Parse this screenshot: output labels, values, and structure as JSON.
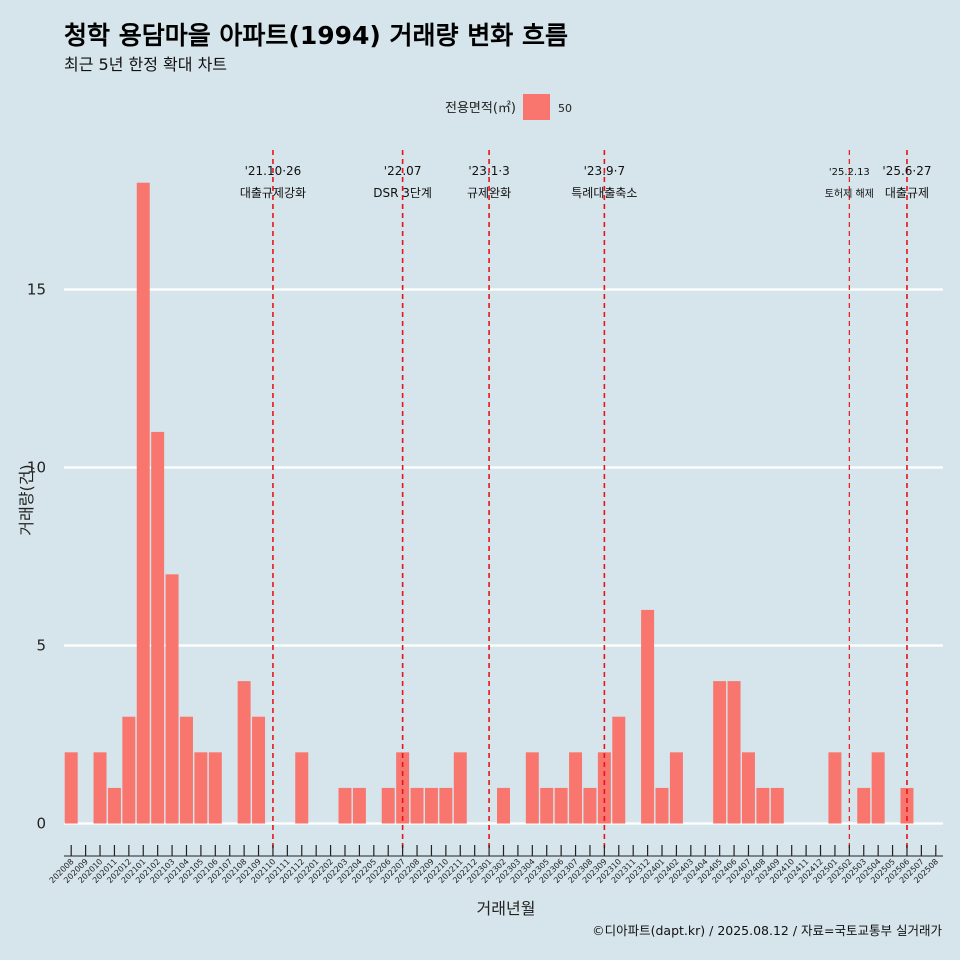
{
  "header": {
    "title": "청학 용담마을 아파트(1994) 거래량 변화 흐름",
    "subtitle": "최근 5년 한정 확대 차트"
  },
  "legend": {
    "title": "전용면적(㎡)",
    "items": [
      {
        "label": "50",
        "color": "#f8766d"
      }
    ]
  },
  "caption": "©디아파트(dapt.kr) / 2025.08.12 / 자료=국토교통부 실거래가",
  "chart_data": {
    "type": "bar",
    "title": "청학 용담마을 아파트(1994) 거래량 변화 흐름",
    "subtitle": "최근 5년 한정 확대 차트",
    "xlabel": "거래년월",
    "ylabel": "거래량(건)",
    "ylim": [
      -0.8,
      19.2
    ],
    "yticks": [
      0,
      5,
      10,
      15
    ],
    "grid": "horizontal major only",
    "legend_position": "top",
    "bar_color": "#f8766d",
    "categories": [
      "202008",
      "202009",
      "202010",
      "202011",
      "202012",
      "202101",
      "202102",
      "202103",
      "202104",
      "202105",
      "202106",
      "202107",
      "202108",
      "202109",
      "202110",
      "202111",
      "202112",
      "202201",
      "202202",
      "202203",
      "202204",
      "202205",
      "202206",
      "202207",
      "202208",
      "202209",
      "202210",
      "202211",
      "202212",
      "202301",
      "202302",
      "202303",
      "202304",
      "202305",
      "202306",
      "202307",
      "202308",
      "202309",
      "202310",
      "202311",
      "202312",
      "202401",
      "202402",
      "202403",
      "202404",
      "202405",
      "202406",
      "202407",
      "202408",
      "202409",
      "202410",
      "202411",
      "202412",
      "202501",
      "202502",
      "202503",
      "202504",
      "202505",
      "202506",
      "202507",
      "202508"
    ],
    "series": [
      {
        "name": "50",
        "values": [
          2,
          0,
          2,
          1,
          3,
          18,
          11,
          7,
          3,
          2,
          2,
          0,
          4,
          3,
          0,
          0,
          2,
          0,
          0,
          1,
          1,
          0,
          1,
          2,
          1,
          1,
          1,
          2,
          0,
          0,
          1,
          0,
          2,
          1,
          1,
          2,
          1,
          2,
          3,
          0,
          6,
          1,
          2,
          0,
          0,
          4,
          4,
          2,
          1,
          1,
          0,
          0,
          0,
          2,
          0,
          1,
          2,
          0,
          1,
          0,
          0
        ]
      }
    ],
    "annotations": [
      {
        "at": "202110",
        "date": "'21.10·26",
        "label": "대출규제강화",
        "size": "normal"
      },
      {
        "at": "202207",
        "date": "'22.07",
        "label": "DSR 3단계",
        "size": "normal"
      },
      {
        "at": "202301",
        "date": "'23.1·3",
        "label": "규제완화",
        "size": "normal"
      },
      {
        "at": "202309",
        "date": "'23.9·7",
        "label": "특례대출축소",
        "size": "normal"
      },
      {
        "at": "202502",
        "date": "'25.2.13",
        "label": "토허제 해제",
        "size": "small"
      },
      {
        "at": "202506",
        "date": "'25.6·27",
        "label": "대출규제",
        "size": "normal"
      }
    ]
  }
}
